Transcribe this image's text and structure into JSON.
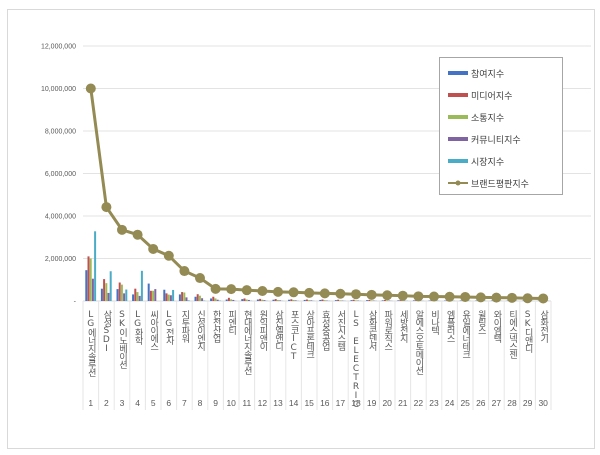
{
  "chart_data": {
    "type": "bar+line",
    "title": "",
    "xlabel": "",
    "ylabel": "",
    "ylim": [
      0,
      12000000
    ],
    "yticks": [
      "-",
      "2,000,000",
      "4,000,000",
      "6,000,000",
      "8,000,000",
      "10,000,000",
      "12,000,000"
    ],
    "grid": true,
    "legend_position": "right-inside",
    "categories": [
      "LG에너지솔루션",
      "삼성SDI",
      "SK이노베이션",
      "LG화학",
      "씨아이에스",
      "LG전자",
      "지투파워",
      "신성이엔지",
      "한전산업",
      "피엔티",
      "현대에너지솔루션",
      "원익피앤이",
      "삼진엘앤디",
      "포스코ICT",
      "상아프론테크",
      "효성중공업",
      "서진시스템",
      "LS ELECTRIC",
      "삼화콘덴서",
      "파워로직스",
      "세방전지",
      "알에스오토메이션",
      "비나텍",
      "엠플러스",
      "유일에너테크",
      "윌링스",
      "와이엠텍",
      "티에스넥스젠",
      "SK디앤디",
      "삼화전기"
    ],
    "ranks": [
      "1",
      "2",
      "3",
      "4",
      "5",
      "6",
      "7",
      "8",
      "9",
      "10",
      "11",
      "12",
      "13",
      "14",
      "15",
      "16",
      "17",
      "18",
      "19",
      "20",
      "21",
      "22",
      "23",
      "24",
      "25",
      "26",
      "27",
      "28",
      "29",
      "30"
    ],
    "series": [
      {
        "name": "참여지수",
        "type": "bar",
        "color": "#4472c4",
        "values": [
          1450000,
          580000,
          560000,
          310000,
          820000,
          530000,
          310000,
          200000,
          120000,
          70000,
          90000,
          70000,
          60000,
          60000,
          50000,
          50000,
          40000,
          40000,
          40000,
          30000,
          30000,
          30000,
          20000,
          20000,
          20000,
          20000,
          20000,
          15000,
          15000,
          15000
        ]
      },
      {
        "name": "미디어지수",
        "type": "bar",
        "color": "#c0504d",
        "values": [
          2100000,
          1030000,
          870000,
          580000,
          480000,
          360000,
          420000,
          320000,
          200000,
          150000,
          120000,
          100000,
          90000,
          80000,
          70000,
          70000,
          60000,
          60000,
          50000,
          50000,
          40000,
          40000,
          30000,
          30000,
          30000,
          30000,
          25000,
          25000,
          20000,
          20000
        ]
      },
      {
        "name": "소통지수",
        "type": "bar",
        "color": "#9bbb59",
        "values": [
          2000000,
          840000,
          770000,
          420000,
          480000,
          300000,
          400000,
          250000,
          120000,
          80000,
          70000,
          60000,
          50000,
          50000,
          40000,
          40000,
          30000,
          30000,
          30000,
          30000,
          20000,
          20000,
          20000,
          20000,
          20000,
          15000,
          15000,
          15000,
          10000,
          10000
        ]
      },
      {
        "name": "커뮤니티지수",
        "type": "bar",
        "color": "#8064a2",
        "values": [
          1050000,
          380000,
          360000,
          240000,
          560000,
          270000,
          170000,
          130000,
          60000,
          50000,
          50000,
          40000,
          30000,
          30000,
          30000,
          20000,
          20000,
          20000,
          20000,
          20000,
          15000,
          15000,
          10000,
          10000,
          10000,
          10000,
          10000,
          10000,
          10000,
          10000
        ]
      },
      {
        "name": "시장지수",
        "type": "bar",
        "color": "#4bacc6",
        "values": [
          3280000,
          1400000,
          540000,
          1420000,
          0,
          520000,
          30000,
          20000,
          20000,
          10000,
          10000,
          10000,
          10000,
          10000,
          10000,
          10000,
          10000,
          10000,
          10000,
          10000,
          10000,
          10000,
          10000,
          10000,
          10000,
          10000,
          10000,
          10000,
          10000,
          10000
        ]
      },
      {
        "name": "브랜드평판지수",
        "type": "line",
        "color": "#948a54",
        "values": [
          10000000,
          4420000,
          3350000,
          3120000,
          2450000,
          2130000,
          1410000,
          1080000,
          570000,
          560000,
          510000,
          470000,
          430000,
          410000,
          380000,
          360000,
          340000,
          320000,
          290000,
          270000,
          250000,
          220000,
          210000,
          200000,
          190000,
          170000,
          160000,
          150000,
          130000,
          120000
        ]
      }
    ]
  },
  "legend": {
    "items": [
      "참여지수",
      "미디어지수",
      "소통지수",
      "커뮤니티지수",
      "시장지수",
      "브랜드평판지수"
    ]
  }
}
